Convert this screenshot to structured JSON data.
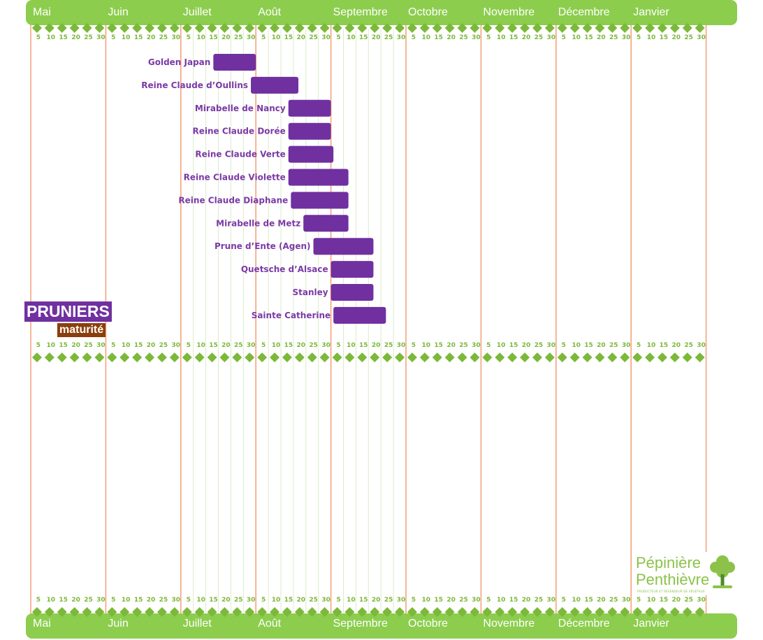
{
  "chart_data": {
    "type": "gantt",
    "title": "PRUNIERS",
    "subtitle": "maturité",
    "months": [
      "Mai",
      "Juin",
      "Juillet",
      "Août",
      "Septembre",
      "Octobre",
      "Novembre",
      "Décembre",
      "Janvier"
    ],
    "day_ticks": [
      "5",
      "10",
      "15",
      "20",
      "25",
      "30"
    ],
    "tasks": [
      {
        "name": "Golden Japan",
        "start": "Juillet 13",
        "end": "Juillet 30"
      },
      {
        "name": "Reine Claude d’Oullins",
        "start": "Juillet 28",
        "end": "Août 17"
      },
      {
        "name": "Mirabelle de Nancy",
        "start": "Août 13",
        "end": "Août 30"
      },
      {
        "name": "Reine Claude Dorée",
        "start": "Août 13",
        "end": "Août 30"
      },
      {
        "name": "Reine Claude Verte",
        "start": "Août 13",
        "end": "Août 31"
      },
      {
        "name": "Reine Claude Violette",
        "start": "Août 13",
        "end": "Septembre 7"
      },
      {
        "name": "Reine Claude Diaphane",
        "start": "Août 14",
        "end": "Septembre 7"
      },
      {
        "name": "Mirabelle de Metz",
        "start": "Août 19",
        "end": "Septembre 7"
      },
      {
        "name": "Prune d’Ente (Agen)",
        "start": "Août 23",
        "end": "Septembre 17"
      },
      {
        "name": "Quetsche d’Alsace",
        "start": "Août 30",
        "end": "Septembre 17"
      },
      {
        "name": "Stanley",
        "start": "Août 30",
        "end": "Septembre 17"
      },
      {
        "name": "Sainte Catherine",
        "start": "Septembre 1",
        "end": "Septembre 22"
      }
    ],
    "colors": {
      "bar": "#7030a0",
      "label": "#7b3aa6",
      "band": "#8ccd4e",
      "diamond": "#7cb83a",
      "month_line": "#f3a37e",
      "day_line": "#d9ecc8",
      "badge_title": "#7030a0",
      "badge_sub": "#8b3e0c"
    }
  },
  "logo": {
    "line1": "Pépinière",
    "line2": "Penthièvre",
    "tagline": "PRODUCTEUR ET RÉVENDEUR DE VÉGÉTAUX",
    "icon": "tree-icon"
  }
}
